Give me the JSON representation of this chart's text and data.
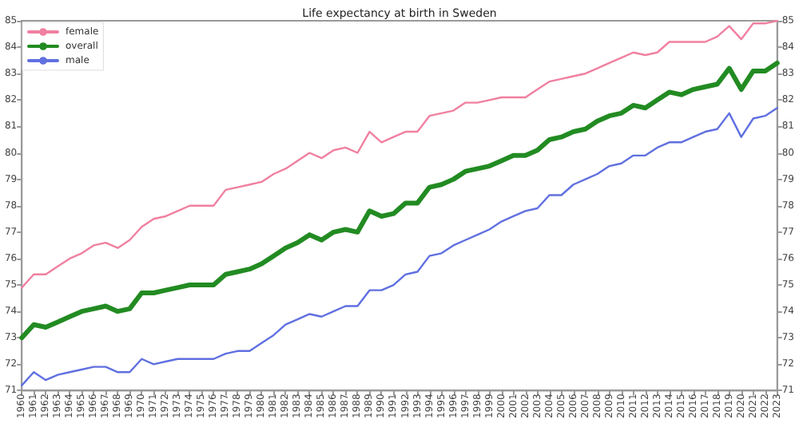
{
  "chart_data": {
    "type": "line",
    "title": "Life expectancy at birth in Sweden",
    "categories": [
      "1960",
      "1961",
      "1962",
      "1963",
      "1964",
      "1965",
      "1966",
      "1967",
      "1968",
      "1969",
      "1970",
      "1971",
      "1972",
      "1973",
      "1974",
      "1975",
      "1976",
      "1977",
      "1978",
      "1979",
      "1980",
      "1981",
      "1982",
      "1983",
      "1984",
      "1985",
      "1986",
      "1987",
      "1988",
      "1989",
      "1990",
      "1991",
      "1992",
      "1993",
      "1994",
      "1995",
      "1996",
      "1997",
      "1998",
      "1999",
      "2000",
      "2001",
      "2002",
      "2003",
      "2004",
      "2005",
      "2006",
      "2007",
      "2008",
      "2009",
      "2010",
      "2011",
      "2012",
      "2013",
      "2014",
      "2015",
      "2016",
      "2017",
      "2018",
      "2019",
      "2020",
      "2021",
      "2022",
      "2023"
    ],
    "series": [
      {
        "name": "female",
        "color": "#f080a0",
        "values": [
          74.9,
          75.4,
          75.4,
          75.7,
          76.0,
          76.2,
          76.5,
          76.6,
          76.4,
          76.7,
          77.2,
          77.5,
          77.6,
          77.8,
          78.0,
          78.0,
          78.0,
          78.6,
          78.7,
          78.8,
          78.9,
          79.2,
          79.4,
          79.7,
          80.0,
          79.8,
          80.1,
          80.2,
          80.0,
          80.8,
          80.4,
          80.6,
          80.8,
          80.8,
          81.4,
          81.5,
          81.6,
          81.9,
          81.9,
          82.0,
          82.1,
          82.1,
          82.1,
          82.4,
          82.7,
          82.8,
          82.9,
          83.0,
          83.2,
          83.4,
          83.6,
          83.8,
          83.7,
          83.8,
          84.2,
          84.2,
          84.2,
          84.2,
          84.4,
          84.8,
          84.3,
          84.9,
          84.9,
          85.0
        ]
      },
      {
        "name": "overall",
        "color": "#228b22",
        "values": [
          73.0,
          73.5,
          73.4,
          73.6,
          73.8,
          74.0,
          74.1,
          74.2,
          74.0,
          74.1,
          74.7,
          74.7,
          74.8,
          74.9,
          75.0,
          75.0,
          75.0,
          75.4,
          75.5,
          75.6,
          75.8,
          76.1,
          76.4,
          76.6,
          76.9,
          76.7,
          77.0,
          77.1,
          77.0,
          77.8,
          77.6,
          77.7,
          78.1,
          78.1,
          78.7,
          78.8,
          79.0,
          79.3,
          79.4,
          79.5,
          79.7,
          79.9,
          79.9,
          80.1,
          80.5,
          80.6,
          80.8,
          80.9,
          81.2,
          81.4,
          81.5,
          81.8,
          81.7,
          82.0,
          82.3,
          82.2,
          82.4,
          82.5,
          82.6,
          83.2,
          82.4,
          83.1,
          83.1,
          83.4
        ]
      },
      {
        "name": "male",
        "color": "#6070e0",
        "values": [
          71.2,
          71.7,
          71.4,
          71.6,
          71.7,
          71.8,
          71.9,
          71.9,
          71.7,
          71.7,
          72.2,
          72.0,
          72.1,
          72.2,
          72.2,
          72.2,
          72.2,
          72.4,
          72.5,
          72.5,
          72.8,
          73.1,
          73.5,
          73.7,
          73.9,
          73.8,
          74.0,
          74.2,
          74.2,
          74.8,
          74.8,
          75.0,
          75.4,
          75.5,
          76.1,
          76.2,
          76.5,
          76.7,
          76.9,
          77.1,
          77.4,
          77.6,
          77.8,
          77.9,
          78.4,
          78.4,
          78.8,
          79.0,
          79.2,
          79.5,
          79.6,
          79.9,
          79.9,
          80.2,
          80.4,
          80.4,
          80.6,
          80.8,
          80.9,
          81.5,
          80.6,
          81.3,
          81.4,
          81.7
        ]
      }
    ],
    "ylim": [
      71,
      85
    ],
    "yticks": [
      71,
      72,
      73,
      74,
      75,
      76,
      77,
      78,
      79,
      80,
      81,
      82,
      83,
      84,
      85
    ],
    "y2lim": [
      71,
      85
    ],
    "y2ticks": [
      71,
      72,
      73,
      74,
      75,
      76,
      77,
      78,
      79,
      80,
      81,
      82,
      83,
      84,
      85
    ],
    "legend": "top left",
    "marker": "none",
    "line_style": "solid"
  }
}
